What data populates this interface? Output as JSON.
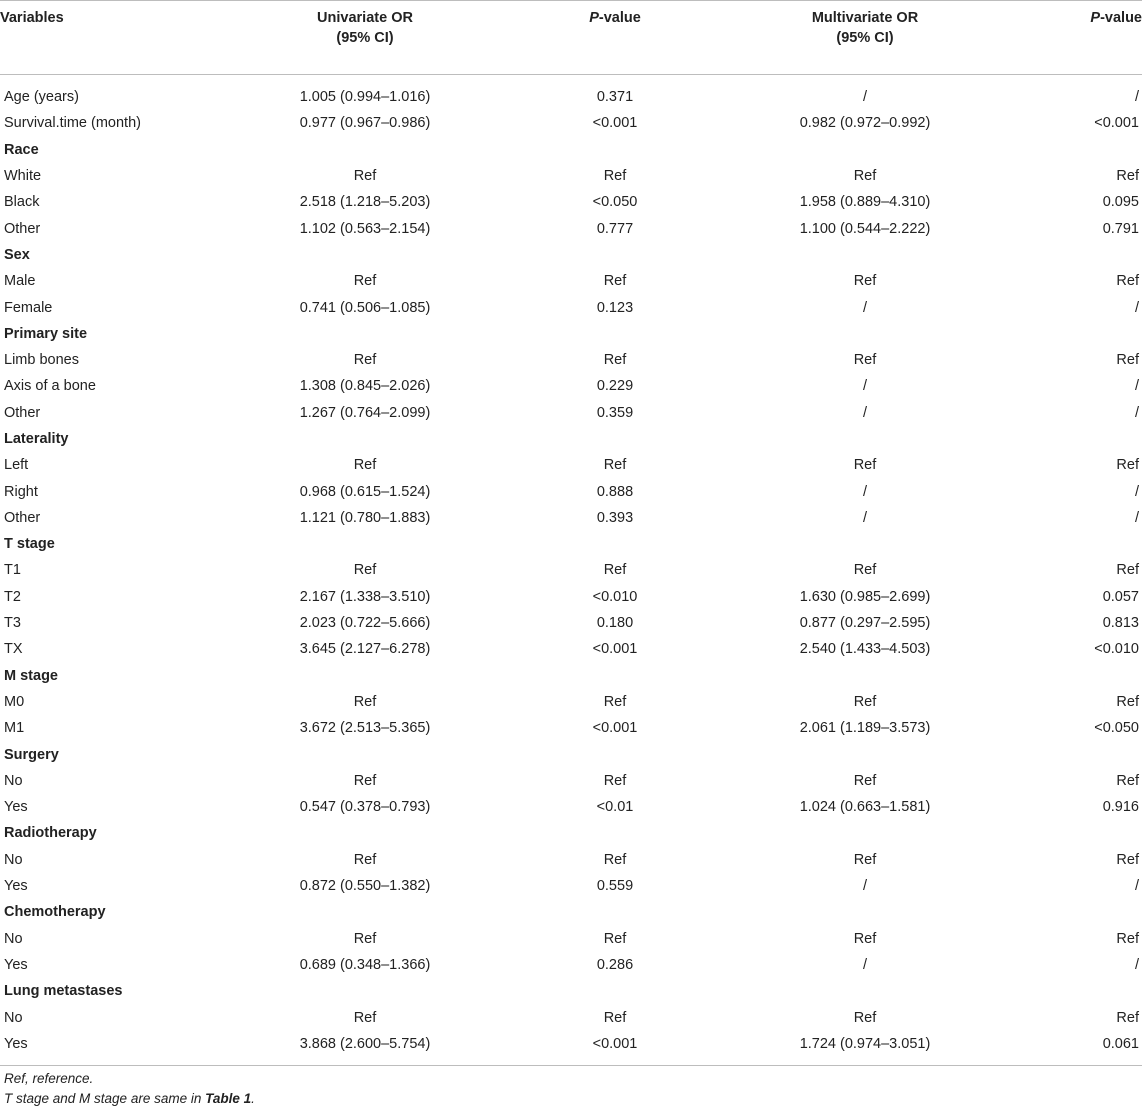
{
  "table": {
    "headers": {
      "variables": "Variables",
      "uni_or_line1": "Univariate OR",
      "uni_or_line2": "(95% CI)",
      "uni_p_italic": "P",
      "uni_p_rest": "-value",
      "multi_or_line1": "Multivariate OR",
      "multi_or_line2": "(95% CI)",
      "multi_p_italic": "P",
      "multi_p_rest": "-value"
    },
    "rows": [
      {
        "type": "data",
        "cells": [
          "Age (years)",
          "1.005 (0.994–1.016)",
          "0.371",
          "/",
          "/"
        ]
      },
      {
        "type": "data",
        "cells": [
          "Survival.time (month)",
          "0.977 (0.967–0.986)",
          "<0.001",
          "0.982 (0.972–0.992)",
          "<0.001"
        ]
      },
      {
        "type": "group",
        "cells": [
          "Race",
          "",
          "",
          "",
          ""
        ]
      },
      {
        "type": "data",
        "cells": [
          "White",
          "Ref",
          "Ref",
          "Ref",
          "Ref"
        ]
      },
      {
        "type": "data",
        "cells": [
          "Black",
          "2.518 (1.218–5.203)",
          "<0.050",
          "1.958 (0.889–4.310)",
          "0.095"
        ]
      },
      {
        "type": "data",
        "cells": [
          "Other",
          "1.102 (0.563–2.154)",
          "0.777",
          "1.100 (0.544–2.222)",
          "0.791"
        ]
      },
      {
        "type": "group",
        "cells": [
          "Sex",
          "",
          "",
          "",
          ""
        ]
      },
      {
        "type": "data",
        "cells": [
          "Male",
          "Ref",
          "Ref",
          "Ref",
          "Ref"
        ]
      },
      {
        "type": "data",
        "cells": [
          "Female",
          "0.741 (0.506–1.085)",
          "0.123",
          "/",
          "/"
        ]
      },
      {
        "type": "group",
        "cells": [
          "Primary site",
          "",
          "",
          "",
          ""
        ]
      },
      {
        "type": "data",
        "cells": [
          "Limb bones",
          "Ref",
          "Ref",
          "Ref",
          "Ref"
        ]
      },
      {
        "type": "data",
        "cells": [
          "Axis of a bone",
          "1.308 (0.845–2.026)",
          "0.229",
          "/",
          "/"
        ]
      },
      {
        "type": "data",
        "cells": [
          "Other",
          "1.267 (0.764–2.099)",
          "0.359",
          "/",
          "/"
        ]
      },
      {
        "type": "group",
        "cells": [
          "Laterality",
          "",
          "",
          "",
          ""
        ]
      },
      {
        "type": "data",
        "cells": [
          "Left",
          "Ref",
          "Ref",
          "Ref",
          "Ref"
        ]
      },
      {
        "type": "data",
        "cells": [
          "Right",
          "0.968 (0.615–1.524)",
          "0.888",
          "/",
          "/"
        ]
      },
      {
        "type": "data",
        "cells": [
          "Other",
          "1.121 (0.780–1.883)",
          "0.393",
          "/",
          "/"
        ]
      },
      {
        "type": "group",
        "cells": [
          "T stage",
          "",
          "",
          "",
          ""
        ]
      },
      {
        "type": "data",
        "cells": [
          "T1",
          "Ref",
          "Ref",
          "Ref",
          "Ref"
        ]
      },
      {
        "type": "data",
        "cells": [
          "T2",
          "2.167 (1.338–3.510)",
          "<0.010",
          "1.630 (0.985–2.699)",
          "0.057"
        ]
      },
      {
        "type": "data",
        "cells": [
          "T3",
          "2.023 (0.722–5.666)",
          "0.180",
          "0.877 (0.297–2.595)",
          "0.813"
        ]
      },
      {
        "type": "data",
        "cells": [
          "TX",
          "3.645 (2.127–6.278)",
          "<0.001",
          "2.540 (1.433–4.503)",
          "<0.010"
        ]
      },
      {
        "type": "group",
        "cells": [
          "M stage",
          "",
          "",
          "",
          ""
        ]
      },
      {
        "type": "data",
        "cells": [
          "M0",
          "Ref",
          "Ref",
          "Ref",
          "Ref"
        ]
      },
      {
        "type": "data",
        "cells": [
          "M1",
          "3.672 (2.513–5.365)",
          "<0.001",
          "2.061 (1.189–3.573)",
          "<0.050"
        ]
      },
      {
        "type": "group",
        "cells": [
          "Surgery",
          "",
          "",
          "",
          ""
        ]
      },
      {
        "type": "data",
        "cells": [
          "No",
          "Ref",
          "Ref",
          "Ref",
          "Ref"
        ]
      },
      {
        "type": "data",
        "cells": [
          "Yes",
          "0.547 (0.378–0.793)",
          "<0.01",
          "1.024 (0.663–1.581)",
          "0.916"
        ]
      },
      {
        "type": "group",
        "cells": [
          "Radiotherapy",
          "",
          "",
          "",
          ""
        ]
      },
      {
        "type": "data",
        "cells": [
          "No",
          "Ref",
          "Ref",
          "Ref",
          "Ref"
        ]
      },
      {
        "type": "data",
        "cells": [
          "Yes",
          "0.872 (0.550–1.382)",
          "0.559",
          "/",
          "/"
        ]
      },
      {
        "type": "group",
        "cells": [
          "Chemotherapy",
          "",
          "",
          "",
          ""
        ]
      },
      {
        "type": "data",
        "cells": [
          "No",
          "Ref",
          "Ref",
          "Ref",
          "Ref"
        ]
      },
      {
        "type": "data",
        "cells": [
          "Yes",
          "0.689 (0.348–1.366)",
          "0.286",
          "/",
          "/"
        ]
      },
      {
        "type": "group",
        "cells": [
          "Lung metastases",
          "",
          "",
          "",
          ""
        ]
      },
      {
        "type": "data",
        "cells": [
          "No",
          "Ref",
          "Ref",
          "Ref",
          "Ref"
        ]
      },
      {
        "type": "data",
        "cells": [
          "Yes",
          "3.868 (2.600–5.754)",
          "<0.001",
          "1.724 (0.974–3.051)",
          "0.061"
        ]
      }
    ]
  },
  "footnotes": {
    "ref_abbrev": "Ref",
    "ref_text": ", reference.",
    "stage_text": "T stage and M stage are same in ",
    "table_ref": "Table 1",
    "stage_end": "."
  }
}
